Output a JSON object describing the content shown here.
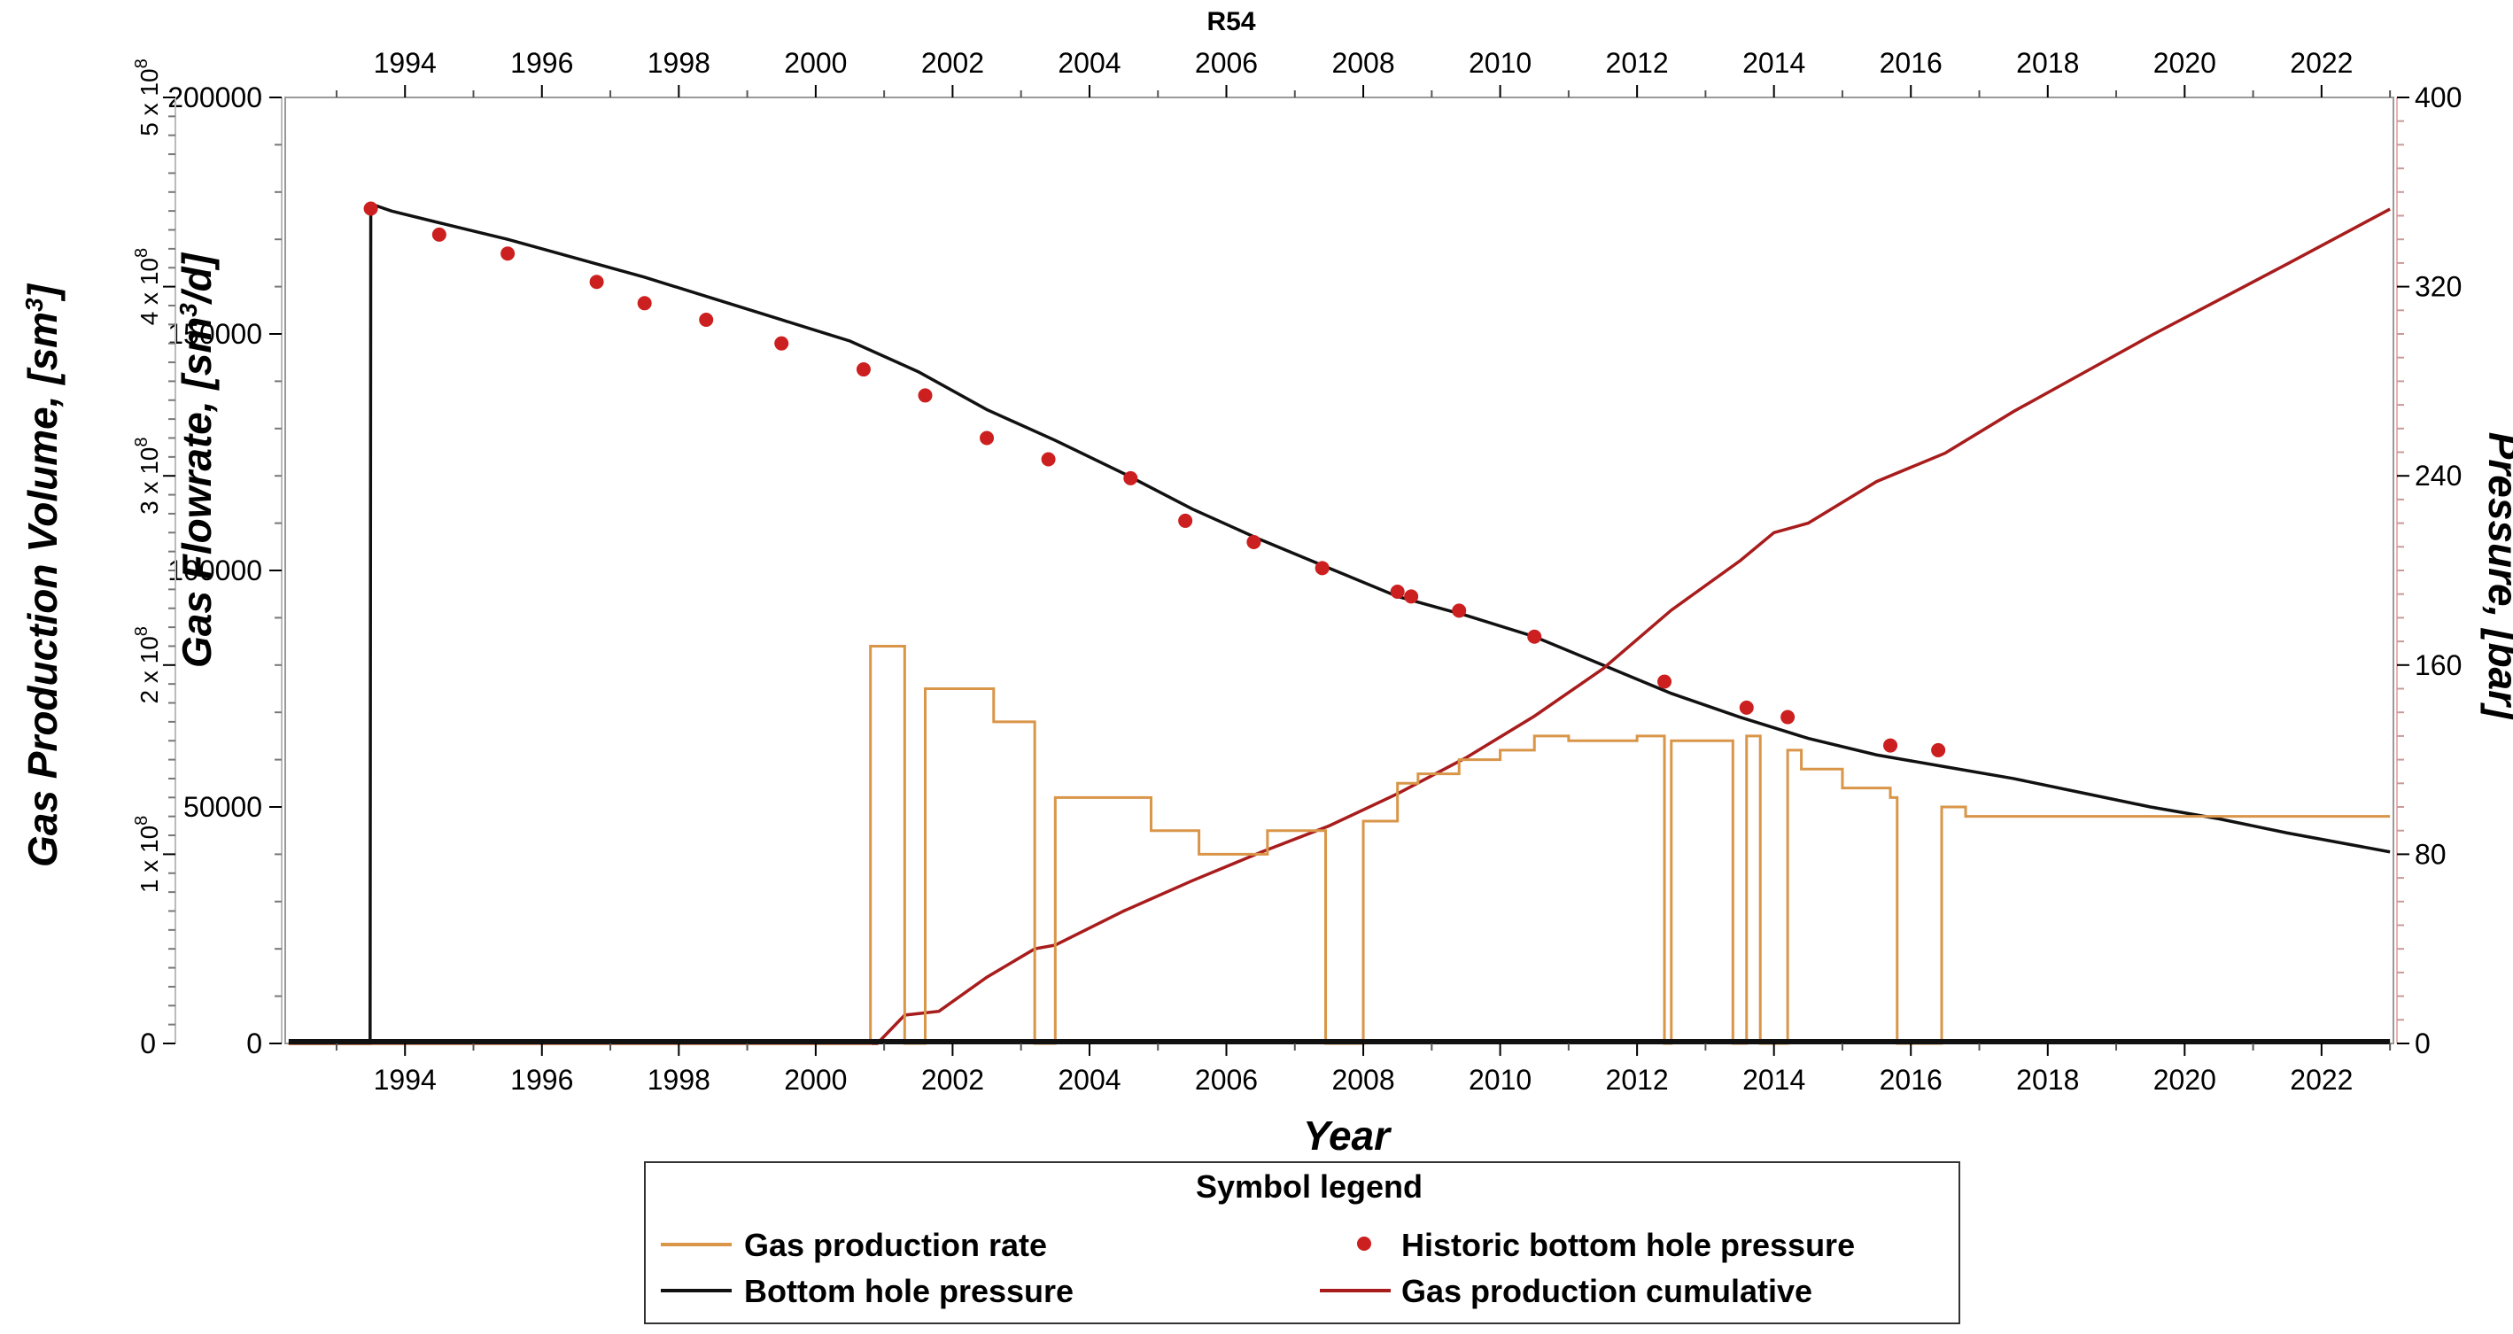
{
  "chart_data": {
    "type": "line",
    "title": "R54",
    "xlabel": "Year",
    "ylabels": {
      "left_outer": "Gas Production Volume, [sm³]",
      "left_inner": "Gas Flowrate, [sm³/d]",
      "right": "Pressure, [bar]"
    },
    "axis_text": {
      "volume_parts": [
        "Gas Production Volume, [sm",
        "3",
        "]"
      ],
      "flow_parts": [
        "Gas Flowrate, [sm",
        "3",
        "/d]"
      ],
      "pressure": "Pressure, [bar]",
      "sci_base": "x 10",
      "sci_exp": "8"
    },
    "xlim": [
      1992.25,
      2023.05
    ],
    "x_ticks": [
      1994,
      1996,
      1998,
      2000,
      2002,
      2004,
      2006,
      2008,
      2010,
      2012,
      2014,
      2016,
      2018,
      2020,
      2022
    ],
    "flowrate_axis": {
      "range": [
        0,
        200000
      ],
      "ticks": [
        0,
        50000,
        100000,
        150000,
        200000
      ]
    },
    "volume_axis": {
      "range": [
        0,
        5
      ],
      "unit_multiplier": "x 10^8",
      "ticks": [
        {
          "value": 0,
          "label": "0"
        },
        {
          "value": 1,
          "label": "1"
        },
        {
          "value": 2,
          "label": "2"
        },
        {
          "value": 3,
          "label": "3"
        },
        {
          "value": 4,
          "label": "4"
        },
        {
          "value": 5,
          "label": "5"
        }
      ]
    },
    "pressure_axis": {
      "range": [
        0,
        400
      ],
      "ticks": [
        0,
        80,
        160,
        240,
        320,
        400
      ]
    },
    "series": [
      {
        "name": "Bottom hole pressure",
        "axis": "pressure",
        "color": "#111111",
        "x": [
          1992.3,
          1993.49,
          1993.5,
          1993.8,
          1994.5,
          1995.5,
          1996.5,
          1997.5,
          1998.5,
          1999.5,
          2000.5,
          2001.5,
          2002.5,
          2003.5,
          2004.5,
          2005.5,
          2006.5,
          2007.5,
          2008.5,
          2009.5,
          2010.5,
          2011.5,
          2012.5,
          2013.5,
          2014.5,
          2015.5,
          2016.5,
          2017.5,
          2018.5,
          2019.5,
          2020.5,
          2021.5,
          2023.0
        ],
        "y": [
          0,
          0,
          355,
          352,
          347,
          340,
          332,
          324,
          315,
          306,
          297,
          284,
          268,
          255,
          241,
          226,
          213,
          201,
          189,
          181,
          172,
          160,
          148,
          138,
          129,
          122,
          117,
          112,
          106,
          100,
          95,
          89,
          81
        ]
      },
      {
        "name": "Gas production cumulative",
        "axis": "volume",
        "color": "#a81c1c",
        "x": [
          1992.3,
          2000.9,
          2001.3,
          2001.8,
          2002.5,
          2003.2,
          2003.5,
          2004.5,
          2005.5,
          2006.5,
          2007.5,
          2008.5,
          2009.5,
          2010.5,
          2011.5,
          2012.5,
          2013.5,
          2014.0,
          2014.5,
          2015.5,
          2016.5,
          2017.5,
          2018.5,
          2019.5,
          2020.5,
          2021.5,
          2023.0
        ],
        "y": [
          0,
          0,
          0.15,
          0.17,
          0.35,
          0.5,
          0.52,
          0.7,
          0.86,
          1.01,
          1.15,
          1.32,
          1.51,
          1.73,
          1.98,
          2.29,
          2.55,
          2.7,
          2.75,
          2.97,
          3.12,
          3.34,
          3.54,
          3.74,
          3.93,
          4.12,
          4.41
        ]
      },
      {
        "name": "Gas production rate",
        "axis": "flowrate",
        "color": "#d99548",
        "step": true,
        "x": [
          1992.3,
          2000.8,
          2001.3,
          2001.6,
          2002.6,
          2003.2,
          2003.5,
          2004.8,
          2004.9,
          2005.6,
          2006.5,
          2006.6,
          2007.4,
          2007.45,
          2008.0,
          2008.5,
          2008.8,
          2009.4,
          2010.0,
          2010.5,
          2011.0,
          2012.0,
          2012.4,
          2012.5,
          2013.4,
          2013.6,
          2013.8,
          2014.2,
          2014.4,
          2015.0,
          2015.7,
          2015.8,
          2016.3,
          2016.45,
          2016.8,
          2023.0
        ],
        "y": [
          0,
          84000,
          0,
          75000,
          68000,
          0,
          52000,
          52000,
          45000,
          40000,
          40000,
          45000,
          45000,
          0,
          47000,
          55000,
          57000,
          60000,
          62000,
          65000,
          64000,
          65000,
          0,
          64000,
          0,
          65000,
          0,
          62000,
          58000,
          54000,
          52000,
          0,
          0,
          50000,
          48000,
          48000
        ]
      },
      {
        "name": "Historic bottom hole pressure",
        "axis": "pressure",
        "color": "#cc1f1f",
        "marker": "dot",
        "x": [
          1993.5,
          1994.5,
          1995.5,
          1996.8,
          1997.5,
          1998.4,
          1999.5,
          2000.7,
          2001.6,
          2002.5,
          2003.4,
          2004.6,
          2005.4,
          2006.4,
          2007.4,
          2008.5,
          2008.7,
          2009.4,
          2010.5,
          2012.4,
          2013.6,
          2014.2,
          2015.7,
          2016.4
        ],
        "y": [
          353,
          342,
          334,
          322,
          313,
          306,
          296,
          285,
          274,
          256,
          247,
          239,
          221,
          212,
          201,
          191,
          189,
          183,
          172,
          153,
          142,
          138,
          126,
          124
        ]
      }
    ],
    "legend": {
      "title": "Symbol legend",
      "placement": "bottom-center",
      "items": [
        {
          "label": "Gas production rate",
          "symbol": "line",
          "color": "#d99548"
        },
        {
          "label": "Historic bottom hole pressure",
          "symbol": "dot",
          "color": "#cc1f1f"
        },
        {
          "label": "Bottom hole pressure",
          "symbol": "line",
          "color": "#111111"
        },
        {
          "label": "Gas production cumulative",
          "symbol": "line",
          "color": "#a81c1c"
        }
      ]
    },
    "grid": false
  }
}
